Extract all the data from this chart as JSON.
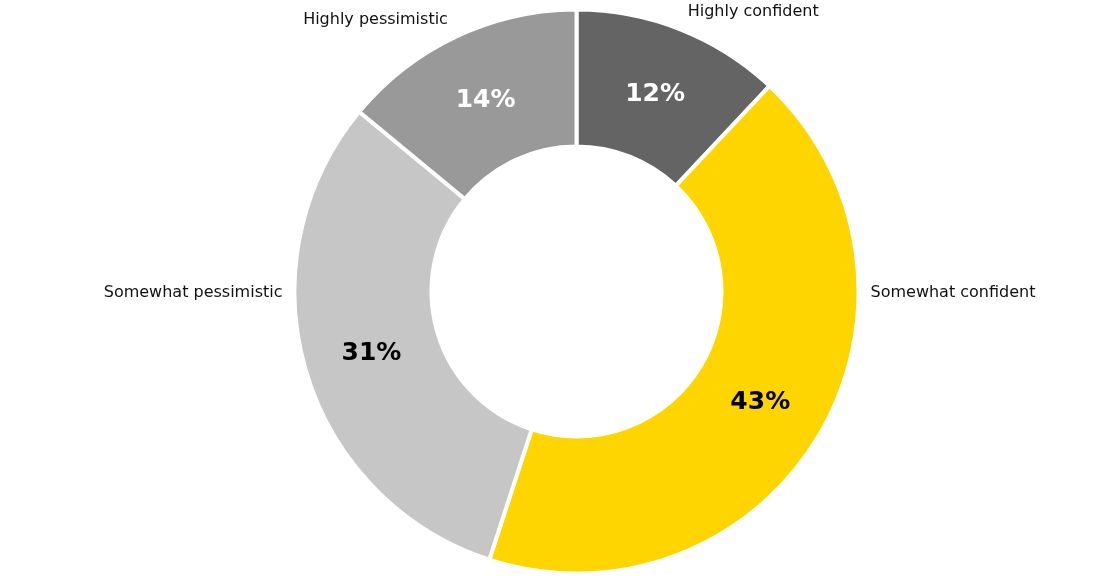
{
  "chart_data": {
    "type": "donut",
    "categories": [
      "Highly confident",
      "Somewhat confident",
      "Somewhat pessimistic",
      "Highly pessimistic"
    ],
    "values": [
      12,
      43,
      31,
      14
    ],
    "colors": [
      "#646464",
      "#ffd500",
      "#c6c6c6",
      "#999999"
    ],
    "value_labels": [
      "12%",
      "43%",
      "31%",
      "14%"
    ]
  }
}
